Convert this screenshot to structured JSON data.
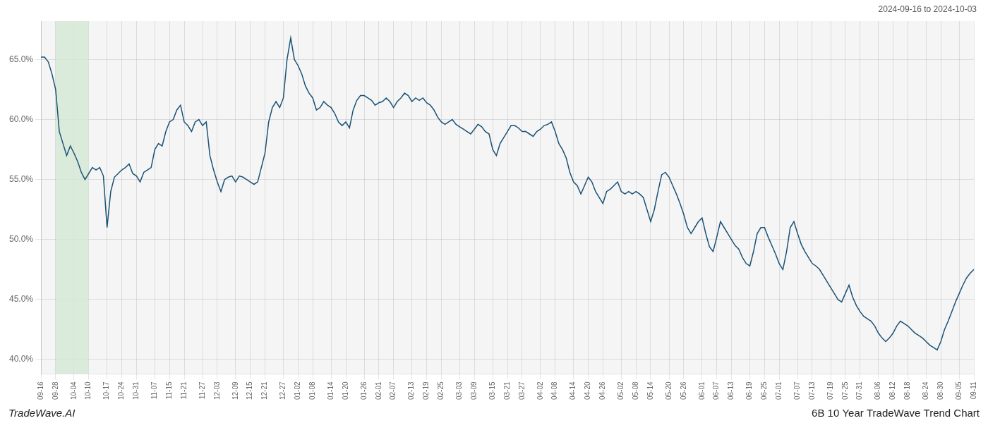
{
  "chart_data": {
    "type": "line",
    "title": "6B 10 Year TradeWave Trend Chart",
    "subtitle": "2024-09-16 to 2024-10-03",
    "annotations": [
      "TradeWave.AI"
    ],
    "categories": [
      "09-16",
      null,
      null,
      null,
      "09-28",
      null,
      null,
      null,
      null,
      "10-04",
      null,
      null,
      null,
      "10-10",
      null,
      null,
      null,
      null,
      "10-17",
      null,
      null,
      null,
      "10-24",
      null,
      null,
      null,
      "10-31",
      null,
      null,
      null,
      null,
      "11-07",
      null,
      null,
      null,
      "11-15",
      null,
      null,
      null,
      "11-21",
      null,
      null,
      null,
      null,
      "11-27",
      null,
      null,
      null,
      "12-03",
      null,
      null,
      null,
      null,
      "12-09",
      null,
      null,
      null,
      "12-15",
      null,
      null,
      null,
      "12-21",
      null,
      null,
      null,
      null,
      "12-27",
      null,
      null,
      null,
      "01-02",
      null,
      null,
      null,
      "01-08",
      null,
      null,
      null,
      null,
      "01-14",
      null,
      null,
      null,
      "01-20",
      null,
      null,
      null,
      null,
      "01-26",
      null,
      null,
      null,
      "02-01",
      null,
      null,
      null,
      "02-07",
      null,
      null,
      null,
      null,
      "02-13",
      null,
      null,
      null,
      "02-19",
      null,
      null,
      null,
      "02-25",
      null,
      null,
      null,
      null,
      "03-03",
      null,
      null,
      null,
      "03-09",
      null,
      null,
      null,
      null,
      "03-15",
      null,
      null,
      null,
      "03-21",
      null,
      null,
      null,
      "03-27",
      null,
      null,
      null,
      null,
      "04-02",
      null,
      null,
      null,
      "04-08",
      null,
      null,
      null,
      null,
      "04-14",
      null,
      null,
      null,
      "04-20",
      null,
      null,
      null,
      "04-26",
      null,
      null,
      null,
      null,
      "05-02",
      null,
      null,
      null,
      "05-08",
      null,
      null,
      null,
      "05-14",
      null,
      null,
      null,
      null,
      "05-20",
      null,
      null,
      null,
      "05-26",
      null,
      null,
      null,
      null,
      "06-01",
      null,
      null,
      null,
      "06-07",
      null,
      null,
      null,
      "06-13",
      null,
      null,
      null,
      null,
      "06-19",
      null,
      null,
      null,
      "06-25",
      null,
      null,
      null,
      "07-01",
      null,
      null,
      null,
      null,
      "07-07",
      null,
      null,
      null,
      "07-13",
      null,
      null,
      null,
      null,
      "07-19",
      null,
      null,
      null,
      "07-25",
      null,
      null,
      null,
      "07-31",
      null,
      null,
      null,
      null,
      "08-06",
      null,
      null,
      null,
      "08-12",
      null,
      null,
      null,
      "08-18",
      null,
      null,
      null,
      null,
      "08-24",
      null,
      null,
      null,
      "08-30",
      null,
      null,
      null,
      null,
      "09-05",
      null,
      null,
      null,
      "09-11"
    ],
    "values": [
      0.652,
      0.652,
      0.648,
      0.638,
      0.625,
      0.59,
      0.58,
      0.57,
      0.578,
      0.572,
      0.565,
      0.556,
      0.55,
      0.555,
      0.56,
      0.558,
      0.56,
      0.553,
      0.51,
      0.54,
      0.552,
      0.555,
      0.558,
      0.56,
      0.563,
      0.555,
      0.553,
      0.548,
      0.556,
      0.558,
      0.56,
      0.575,
      0.58,
      0.578,
      0.59,
      0.598,
      0.6,
      0.608,
      0.612,
      0.598,
      0.595,
      0.59,
      0.598,
      0.6,
      0.595,
      0.598,
      0.57,
      0.558,
      0.548,
      0.54,
      0.55,
      0.552,
      0.553,
      0.548,
      0.553,
      0.552,
      0.55,
      0.548,
      0.546,
      0.548,
      0.56,
      0.572,
      0.598,
      0.61,
      0.615,
      0.61,
      0.618,
      0.65,
      0.668,
      0.65,
      0.645,
      0.638,
      0.628,
      0.622,
      0.618,
      0.608,
      0.61,
      0.615,
      0.612,
      0.61,
      0.605,
      0.598,
      0.595,
      0.598,
      0.593,
      0.608,
      0.616,
      0.62,
      0.62,
      0.618,
      0.616,
      0.612,
      0.614,
      0.615,
      0.618,
      0.615,
      0.61,
      0.615,
      0.618,
      0.622,
      0.62,
      0.615,
      0.618,
      0.616,
      0.618,
      0.614,
      0.612,
      0.608,
      0.602,
      0.598,
      0.596,
      0.598,
      0.6,
      0.596,
      0.594,
      0.592,
      0.59,
      0.588,
      0.592,
      0.596,
      0.594,
      0.59,
      0.588,
      0.575,
      0.57,
      0.58,
      0.585,
      0.59,
      0.595,
      0.595,
      0.593,
      0.59,
      0.59,
      0.588,
      0.586,
      0.59,
      0.592,
      0.595,
      0.596,
      0.598,
      0.59,
      0.58,
      0.575,
      0.568,
      0.556,
      0.548,
      0.545,
      0.538,
      0.545,
      0.552,
      0.548,
      0.54,
      0.535,
      0.53,
      0.54,
      0.542,
      0.545,
      0.548,
      0.54,
      0.538,
      0.54,
      0.538,
      0.54,
      0.538,
      0.535,
      0.525,
      0.515,
      0.525,
      0.54,
      0.554,
      0.556,
      0.552,
      0.545,
      0.538,
      0.53,
      0.521,
      0.51,
      0.505,
      0.51,
      0.515,
      0.518,
      0.505,
      0.494,
      0.49,
      0.502,
      0.515,
      0.51,
      0.505,
      0.5,
      0.495,
      0.492,
      0.485,
      0.48,
      0.478,
      0.49,
      0.505,
      0.51,
      0.51,
      0.502,
      0.495,
      0.488,
      0.48,
      0.475,
      0.49,
      0.51,
      0.515,
      0.505,
      0.496,
      0.49,
      0.485,
      0.48,
      0.478,
      0.475,
      0.47,
      0.465,
      0.46,
      0.455,
      0.45,
      0.448,
      0.455,
      0.462,
      0.452,
      0.445,
      0.44,
      0.436,
      0.434,
      0.432,
      0.428,
      0.422,
      0.418,
      0.415,
      0.418,
      0.422,
      0.428,
      0.432,
      0.43,
      0.428,
      0.425,
      0.422,
      0.42,
      0.418,
      0.415,
      0.412,
      0.41,
      0.408,
      0.415,
      0.425,
      0.432,
      0.44,
      0.448,
      0.455,
      0.462,
      0.468,
      0.472,
      0.475
    ],
    "color": "#1a5276",
    "ylim": [
      0.388,
      0.682
    ],
    "yticks": [
      {
        "value": 0.4,
        "label": "40.0%"
      },
      {
        "value": 0.45,
        "label": "45.0%"
      },
      {
        "value": 0.5,
        "label": "50.0%"
      },
      {
        "value": 0.55,
        "label": "55.0%"
      },
      {
        "value": 0.6,
        "label": "60.0%"
      },
      {
        "value": 0.65,
        "label": "65.0%"
      }
    ],
    "grid": true,
    "highlight": {
      "from": "09-28",
      "to": "10-10",
      "color": "#d5e8d4"
    }
  }
}
